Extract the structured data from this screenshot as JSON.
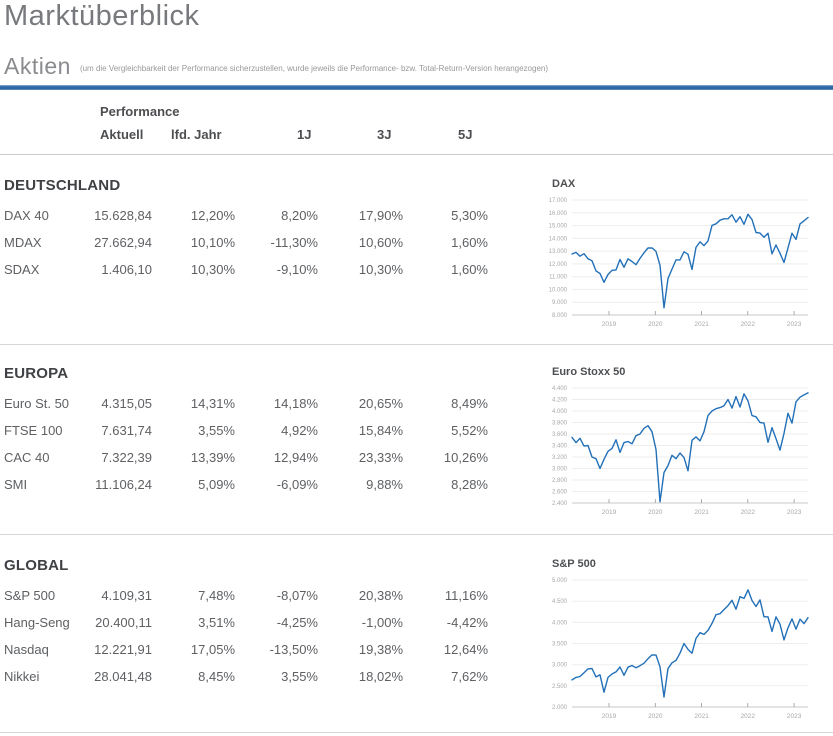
{
  "page": {
    "title": "Marktüberblick"
  },
  "aktien": {
    "title": "Aktien",
    "note": "(um die Vergleichbarkeit der Performance sicherzustellen, wurde jeweils die Performance- bzw. Total-Return-Version herangezogen)"
  },
  "table_header": {
    "group_label": "Performance",
    "columns": [
      "Aktuell",
      "lfd. Jahr",
      "1J",
      "3J",
      "5J"
    ]
  },
  "colors": {
    "accent_blue": "#2d67a6",
    "line_blue": "#2270b8",
    "grid_gray": "#ededed",
    "axis_gray": "#c9c9c9",
    "tick_label_gray": "#a8a8a8"
  },
  "sections": [
    {
      "name": "DEUTSCHLAND",
      "rows": [
        {
          "label": "DAX 40",
          "values": [
            "15.628,84",
            "12,20%",
            "8,20%",
            "17,90%",
            "5,30%"
          ]
        },
        {
          "label": "MDAX",
          "values": [
            "27.662,94",
            "10,10%",
            "-11,30%",
            "10,60%",
            "1,60%"
          ]
        },
        {
          "label": "SDAX",
          "values": [
            "1.406,10",
            "10,30%",
            "-9,10%",
            "10,30%",
            "1,60%"
          ]
        }
      ]
    },
    {
      "name": "EUROPA",
      "rows": [
        {
          "label": "Euro St. 50",
          "values": [
            "4.315,05",
            "14,31%",
            "14,18%",
            "20,65%",
            "8,49%"
          ]
        },
        {
          "label": "FTSE 100",
          "values": [
            "7.631,74",
            "3,55%",
            "4,92%",
            "15,84%",
            "5,52%"
          ]
        },
        {
          "label": "CAC 40",
          "values": [
            "7.322,39",
            "13,39%",
            "12,94%",
            "23,33%",
            "10,26%"
          ]
        },
        {
          "label": "SMI",
          "values": [
            "11.106,24",
            "5,09%",
            "-6,09%",
            "9,88%",
            "8,28%"
          ]
        }
      ]
    },
    {
      "name": "GLOBAL",
      "rows": [
        {
          "label": "S&P 500",
          "values": [
            "4.109,31",
            "7,48%",
            "-8,07%",
            "20,38%",
            "11,16%"
          ]
        },
        {
          "label": "Hang-Seng",
          "values": [
            "20.400,11",
            "3,51%",
            "-4,25%",
            "-1,00%",
            "-4,42%"
          ]
        },
        {
          "label": "Nasdaq",
          "values": [
            "12.221,91",
            "17,05%",
            "-13,50%",
            "19,38%",
            "12,64%"
          ]
        },
        {
          "label": "Nikkei",
          "values": [
            "28.041,48",
            "8,45%",
            "3,55%",
            "18,02%",
            "7,62%"
          ]
        }
      ]
    }
  ],
  "chart_data": [
    {
      "type": "line",
      "title": "DAX",
      "x_range": [
        2018.2,
        2023.3
      ],
      "x_ticks": [
        2019,
        2020,
        2021,
        2022,
        2023
      ],
      "ylim": [
        8000,
        17000
      ],
      "y_ticks": [
        8000,
        9000,
        10000,
        11000,
        12000,
        13000,
        14000,
        15000,
        16000,
        17000
      ],
      "values": [
        12770,
        12900,
        12600,
        12800,
        12400,
        12250,
        11450,
        11250,
        10560,
        11170,
        11500,
        11530,
        12340,
        11730,
        12400,
        12190,
        11940,
        12430,
        12870,
        13240,
        13250,
        12980,
        11890,
        8560,
        10860,
        11590,
        12310,
        12310,
        12950,
        12760,
        11560,
        13290,
        13720,
        13430,
        13790,
        15010,
        15140,
        15420,
        15530,
        15540,
        15840,
        15260,
        15690,
        15100,
        15880,
        15470,
        14460,
        14410,
        14080,
        14390,
        12780,
        13480,
        12830,
        12110,
        13250,
        14400,
        13920,
        15130,
        15370,
        15629
      ]
    },
    {
      "type": "line",
      "title": "Euro Stoxx 50",
      "x_range": [
        2018.2,
        2023.3
      ],
      "x_ticks": [
        2019,
        2020,
        2021,
        2022,
        2023
      ],
      "ylim": [
        2400,
        4400
      ],
      "y_ticks": [
        2400,
        2600,
        2800,
        3000,
        3200,
        3400,
        3600,
        3800,
        4000,
        4200,
        4400
      ],
      "values": [
        3540,
        3450,
        3525,
        3390,
        3400,
        3200,
        3170,
        3000,
        3160,
        3300,
        3350,
        3500,
        3280,
        3450,
        3470,
        3430,
        3570,
        3600,
        3700,
        3745,
        3640,
        3330,
        2420,
        2930,
        3050,
        3230,
        3170,
        3270,
        3190,
        2960,
        3490,
        3550,
        3480,
        3640,
        3920,
        4000,
        4040,
        4060,
        4090,
        4200,
        4050,
        4250,
        4070,
        4300,
        4175,
        3920,
        3900,
        3800,
        3790,
        3455,
        3710,
        3520,
        3320,
        3610,
        3960,
        3790,
        4160,
        4240,
        4280,
        4315
      ]
    },
    {
      "type": "line",
      "title": "S&P 500",
      "x_range": [
        2018.2,
        2023.3
      ],
      "x_ticks": [
        2019,
        2020,
        2021,
        2022,
        2023
      ],
      "ylim": [
        2000,
        5000
      ],
      "y_ticks": [
        2000,
        2500,
        3000,
        3500,
        4000,
        4500,
        5000
      ],
      "values": [
        2640,
        2700,
        2720,
        2810,
        2900,
        2910,
        2710,
        2760,
        2350,
        2700,
        2780,
        2830,
        2945,
        2750,
        2940,
        2980,
        2925,
        2975,
        3035,
        3140,
        3230,
        3225,
        2950,
        2237,
        2910,
        3045,
        3100,
        3270,
        3500,
        3360,
        3270,
        3620,
        3755,
        3715,
        3810,
        3975,
        4180,
        4205,
        4300,
        4395,
        4520,
        4310,
        4605,
        4565,
        4765,
        4515,
        4375,
        4530,
        4130,
        4130,
        3785,
        4130,
        3955,
        3585,
        3870,
        4080,
        3840,
        4075,
        3970,
        4109
      ]
    }
  ]
}
